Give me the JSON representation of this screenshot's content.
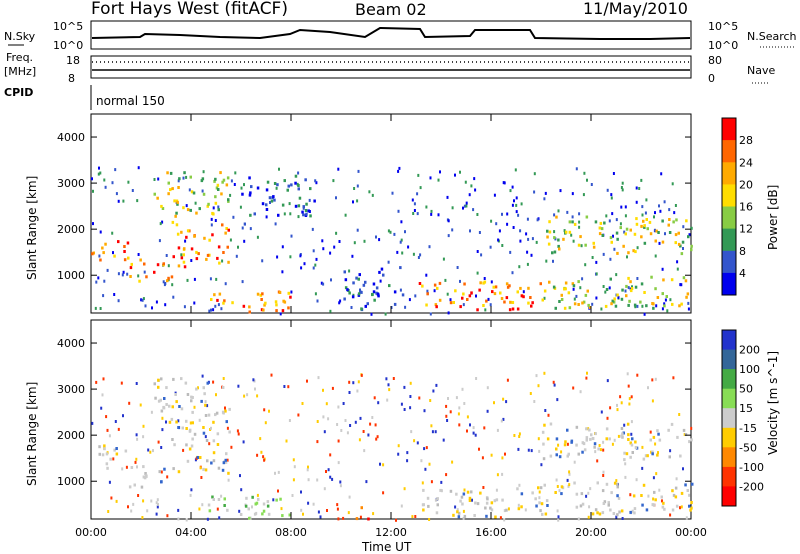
{
  "header": {
    "station": "Fort Hays West (fitACF)",
    "beam": "Beam 02",
    "date": "11/May/2010"
  },
  "panels": {
    "nsky_label": "N.Sky",
    "nsearch_label": "N.Search",
    "noise_ticks": [
      "10^5",
      "10^0"
    ],
    "freq_label_1": "Freq.",
    "freq_label_2": "[MHz]",
    "freq_ticks": [
      "18",
      "8"
    ],
    "nave_label": "Nave",
    "nave_ticks": [
      "80",
      "0"
    ],
    "cpid_label": "CPID",
    "cpid_value": "normal 150"
  },
  "chart_data": [
    {
      "type": "heatmap",
      "name": "power",
      "ylabel": "Slant Range [km]",
      "xlabel": "Time UT",
      "x_ticks": [
        "00:00",
        "04:00",
        "08:00",
        "12:00",
        "16:00",
        "20:00",
        "00:00"
      ],
      "xlim_hours": [
        0,
        24
      ],
      "ylim_km": [
        180,
        4500
      ],
      "y_ticks": [
        1000,
        2000,
        3000,
        4000
      ],
      "colorbar": {
        "label": "Power [dB]",
        "ticks": [
          "28",
          "24",
          "20",
          "16",
          "12",
          "8",
          "4"
        ],
        "colors": [
          "#ff0000",
          "#ff6600",
          "#ffaa00",
          "#ffdd00",
          "#88cc44",
          "#339955",
          "#3355cc",
          "#0000ee"
        ]
      },
      "regions": [
        {
          "t0": 0.0,
          "t1": 1.5,
          "r0": 1300,
          "r1": 1800,
          "level": "high"
        },
        {
          "t0": 1.5,
          "t1": 3.2,
          "r0": 900,
          "r1": 1400,
          "level": "high"
        },
        {
          "t0": 3.2,
          "t1": 5.5,
          "r0": 1200,
          "r1": 2200,
          "level": "high"
        },
        {
          "t0": 2.5,
          "t1": 5.5,
          "r0": 2300,
          "r1": 3300,
          "level": "mid"
        },
        {
          "t0": 4.5,
          "t1": 8.0,
          "r0": 200,
          "r1": 700,
          "level": "high"
        },
        {
          "t0": 6.0,
          "t1": 9.0,
          "r0": 2300,
          "r1": 3200,
          "level": "low"
        },
        {
          "t0": 13.0,
          "t1": 18.0,
          "r0": 250,
          "r1": 900,
          "level": "high"
        },
        {
          "t0": 18.0,
          "t1": 24.0,
          "r0": 300,
          "r1": 1000,
          "level": "mid"
        },
        {
          "t0": 18.0,
          "t1": 24.0,
          "r0": 1500,
          "r1": 2300,
          "level": "mid"
        },
        {
          "t0": 10.0,
          "t1": 12.5,
          "r0": 250,
          "r1": 1200,
          "level": "low"
        }
      ]
    },
    {
      "type": "heatmap",
      "name": "velocity",
      "ylabel": "Slant Range [km]",
      "xlabel": "Time UT",
      "x_ticks": [
        "00:00",
        "04:00",
        "08:00",
        "12:00",
        "16:00",
        "20:00",
        "00:00"
      ],
      "xlim_hours": [
        0,
        24
      ],
      "ylim_km": [
        180,
        4500
      ],
      "y_ticks": [
        1000,
        2000,
        3000,
        4000
      ],
      "colorbar": {
        "label": "Velocity [m s^-1]",
        "ticks": [
          "200",
          "100",
          "50",
          "15",
          "-15",
          "-50",
          "-100",
          "-200"
        ],
        "colors": [
          "#2233cc",
          "#336699",
          "#44aa44",
          "#88dd55",
          "#cccccc",
          "#ffcc00",
          "#ff8800",
          "#ff3300",
          "#ff0000"
        ]
      },
      "regions": [
        {
          "t0": 0.0,
          "t1": 1.5,
          "r0": 1300,
          "r1": 1800,
          "level": "gs"
        },
        {
          "t0": 1.5,
          "t1": 3.2,
          "r0": 900,
          "r1": 1400,
          "level": "gs"
        },
        {
          "t0": 3.2,
          "t1": 5.5,
          "r0": 1200,
          "r1": 2200,
          "level": "gs"
        },
        {
          "t0": 2.5,
          "t1": 5.5,
          "r0": 2300,
          "r1": 3300,
          "level": "gs"
        },
        {
          "t0": 4.5,
          "t1": 8.0,
          "r0": 200,
          "r1": 700,
          "level": "green"
        },
        {
          "t0": 10.5,
          "t1": 11.2,
          "r0": 200,
          "r1": 500,
          "level": "neg"
        },
        {
          "t0": 13.0,
          "t1": 18.0,
          "r0": 250,
          "r1": 900,
          "level": "gs"
        },
        {
          "t0": 18.0,
          "t1": 24.0,
          "r0": 300,
          "r1": 1000,
          "level": "gs"
        },
        {
          "t0": 18.0,
          "t1": 24.0,
          "r0": 1500,
          "r1": 2300,
          "level": "gs"
        }
      ]
    }
  ]
}
